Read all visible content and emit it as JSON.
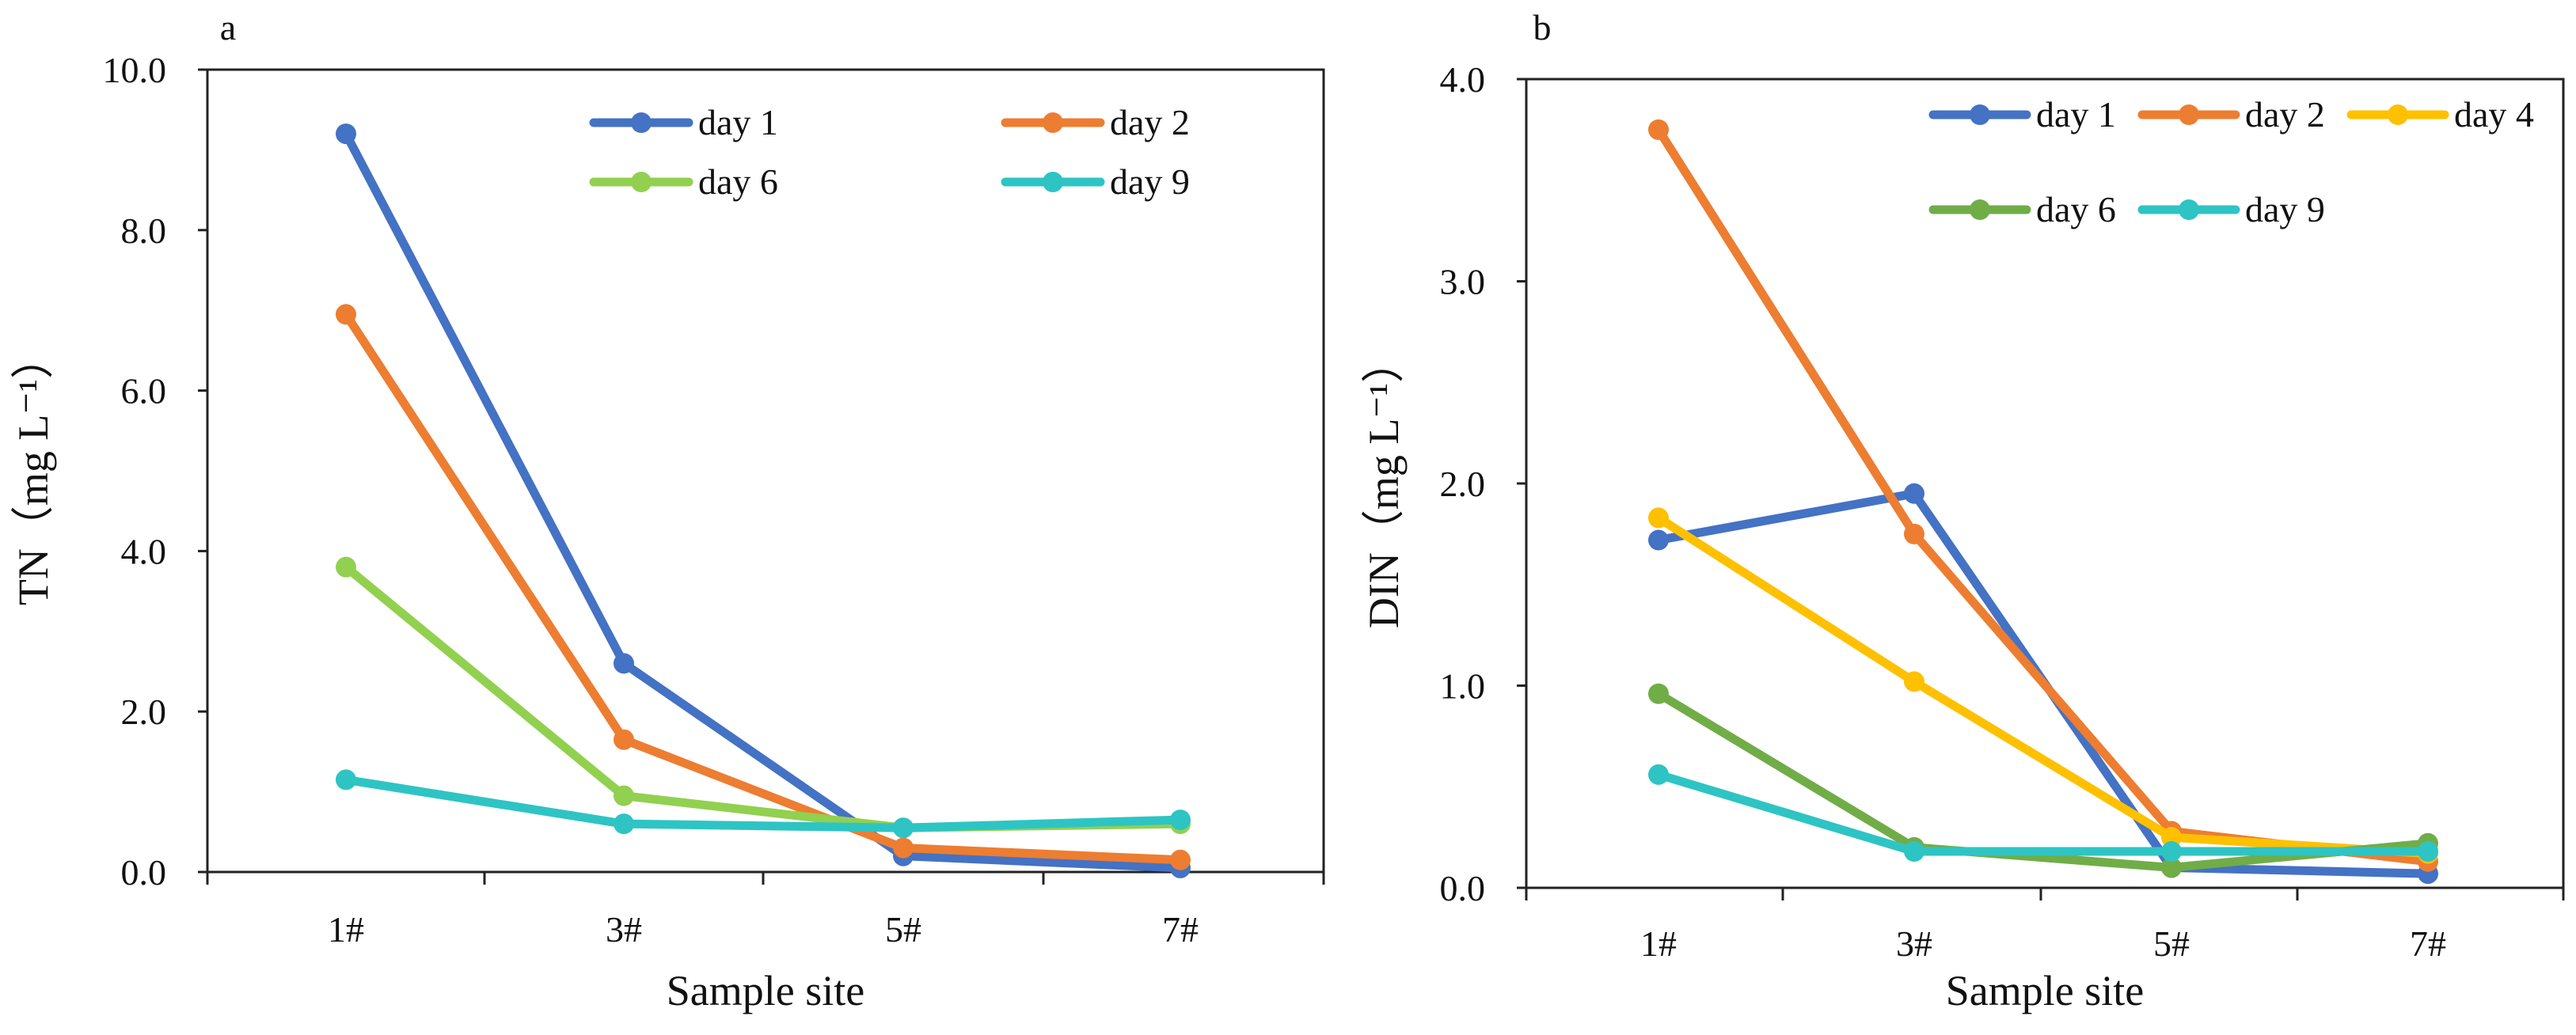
{
  "figure_description_free": true,
  "chart_data": [
    {
      "id": "a",
      "type": "line",
      "panel_label": "a",
      "categories": [
        "1#",
        "3#",
        "5#",
        "7#"
      ],
      "xlabel": "Sample site",
      "ylabel": "TN（mg L⁻¹）",
      "ylim": [
        0,
        10
      ],
      "yticks": [
        0,
        2,
        4,
        6,
        8,
        10
      ],
      "ytick_labels": [
        "0.0",
        "2.0",
        "4.0",
        "6.0",
        "8.0",
        "10.0"
      ],
      "grid": false,
      "legend": {
        "position": "top-right",
        "columns": 2
      },
      "series": [
        {
          "name": "day 1",
          "color": "#4472C4",
          "values": [
            9.2,
            2.6,
            0.2,
            0.05
          ]
        },
        {
          "name": "day 2",
          "color": "#ED7D31",
          "values": [
            6.95,
            1.65,
            0.3,
            0.15
          ]
        },
        {
          "name": "day 6",
          "color": "#92D050",
          "values": [
            3.8,
            0.95,
            0.55,
            0.6
          ]
        },
        {
          "name": "day 9",
          "color": "#2EC4C4",
          "values": [
            1.15,
            0.6,
            0.55,
            0.65
          ]
        }
      ]
    },
    {
      "id": "b",
      "type": "line",
      "panel_label": "b",
      "categories": [
        "1#",
        "3#",
        "5#",
        "7#"
      ],
      "xlabel": "Sample site",
      "ylabel": "DIN（mg L⁻¹）",
      "ylim": [
        0,
        4
      ],
      "yticks": [
        0,
        1,
        2,
        3,
        4
      ],
      "ytick_labels": [
        "0.0",
        "1.0",
        "2.0",
        "3.0",
        "4.0"
      ],
      "grid": false,
      "legend": {
        "position": "top-right",
        "columns": 3
      },
      "series": [
        {
          "name": "day 1",
          "color": "#4472C4",
          "values": [
            1.72,
            1.95,
            0.1,
            0.07
          ]
        },
        {
          "name": "day 2",
          "color": "#ED7D31",
          "values": [
            3.75,
            1.75,
            0.28,
            0.13
          ]
        },
        {
          "name": "day 4",
          "color": "#FFC000",
          "values": [
            1.83,
            1.02,
            0.25,
            0.17
          ]
        },
        {
          "name": "day 6",
          "color": "#70AD47",
          "values": [
            0.96,
            0.2,
            0.1,
            0.22
          ]
        },
        {
          "name": "day 9",
          "color": "#2EC4C4",
          "values": [
            0.56,
            0.18,
            0.18,
            0.18
          ]
        }
      ]
    }
  ]
}
